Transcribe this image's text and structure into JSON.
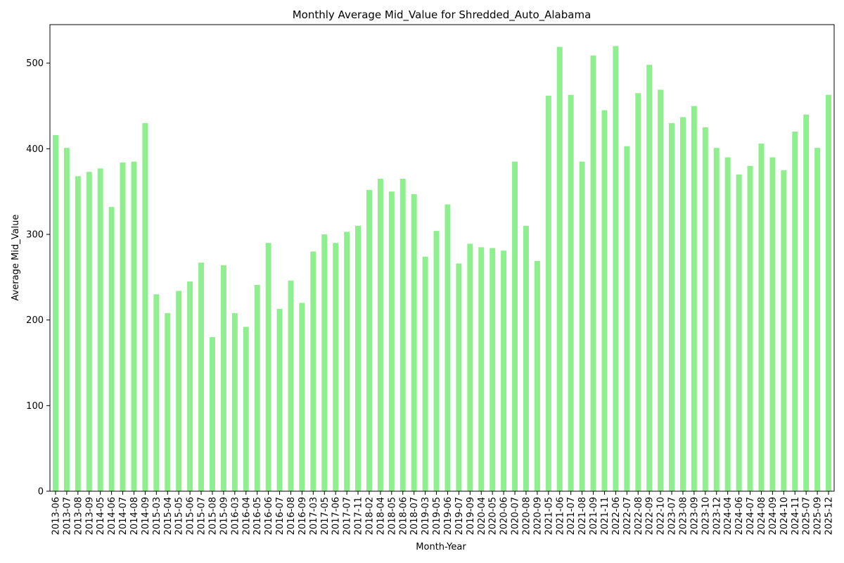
{
  "chart_data": {
    "type": "bar",
    "title": "Monthly Average Mid_Value for Shredded_Auto_Alabama",
    "xlabel": "Month-Year",
    "ylabel": "Average Mid_Value",
    "ylim": [
      0,
      545
    ],
    "yticks": [
      0,
      100,
      200,
      300,
      400,
      500
    ],
    "grid": false,
    "bar_color": "#90ee90",
    "categories": [
      "2013-06",
      "2013-07",
      "2013-08",
      "2013-09",
      "2014-05",
      "2014-06",
      "2014-07",
      "2014-08",
      "2014-09",
      "2015-03",
      "2015-04",
      "2015-05",
      "2015-06",
      "2015-07",
      "2015-08",
      "2015-09",
      "2016-03",
      "2016-04",
      "2016-05",
      "2016-06",
      "2016-07",
      "2016-08",
      "2016-09",
      "2017-03",
      "2017-05",
      "2017-06",
      "2017-07",
      "2017-11",
      "2018-02",
      "2018-04",
      "2018-05",
      "2018-06",
      "2018-07",
      "2019-03",
      "2019-05",
      "2019-06",
      "2019-07",
      "2019-09",
      "2020-04",
      "2020-05",
      "2020-06",
      "2020-07",
      "2020-08",
      "2020-09",
      "2021-05",
      "2021-06",
      "2021-07",
      "2021-08",
      "2021-09",
      "2021-11",
      "2022-06",
      "2022-07",
      "2022-08",
      "2022-09",
      "2022-10",
      "2023-07",
      "2023-08",
      "2023-09",
      "2023-10",
      "2023-12",
      "2024-04",
      "2024-06",
      "2024-07",
      "2024-08",
      "2024-09",
      "2024-10",
      "2024-11",
      "2025-07",
      "2025-09",
      "2025-12"
    ],
    "values": [
      416,
      401,
      368,
      373,
      377,
      332,
      384,
      385,
      430,
      230,
      208,
      234,
      245,
      267,
      180,
      264,
      208,
      192,
      241,
      290,
      213,
      246,
      220,
      280,
      300,
      290,
      303,
      310,
      352,
      365,
      350,
      365,
      347,
      274,
      304,
      335,
      266,
      289,
      285,
      284,
      281,
      385,
      310,
      269,
      462,
      519,
      463,
      385,
      509,
      445,
      520,
      403,
      465,
      498,
      469,
      430,
      437,
      450,
      425,
      401,
      390,
      370,
      380,
      406,
      390,
      375,
      420,
      440,
      401,
      463
    ]
  }
}
